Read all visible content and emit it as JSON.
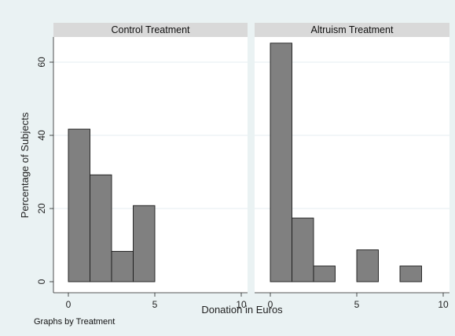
{
  "chart_data": {
    "type": "bar",
    "xlabel": "Donation in Euros",
    "ylabel": "Percentage of Subjects",
    "note": "Graphs by Treatment",
    "xlim": [
      0,
      10
    ],
    "ylim": [
      0,
      65
    ],
    "x_ticks": [
      "0",
      "5",
      "10"
    ],
    "y_ticks": [
      "0",
      "20",
      "40",
      "60"
    ],
    "grid": true,
    "colors": {
      "bar": "#808080",
      "strip": "#d9d9d9",
      "outer_bg": "#eaf2f3",
      "plot_bg": "#ffffff",
      "grid": "#e6eef0"
    },
    "panels": [
      {
        "name": "Control Treatment",
        "bars": [
          {
            "x0": 0.0,
            "x1": 1.25,
            "value": 41.7
          },
          {
            "x0": 1.25,
            "x1": 2.5,
            "value": 29.2
          },
          {
            "x0": 2.5,
            "x1": 3.75,
            "value": 8.3
          },
          {
            "x0": 3.75,
            "x1": 5.0,
            "value": 20.8
          }
        ]
      },
      {
        "name": "Altruism Treatment",
        "bars": [
          {
            "x0": 0.0,
            "x1": 1.25,
            "value": 65.2
          },
          {
            "x0": 1.25,
            "x1": 2.5,
            "value": 17.4
          },
          {
            "x0": 2.5,
            "x1": 3.75,
            "value": 4.3
          },
          {
            "x0": 5.0,
            "x1": 6.25,
            "value": 8.7
          },
          {
            "x0": 7.5,
            "x1": 8.75,
            "value": 4.3
          }
        ]
      }
    ]
  }
}
